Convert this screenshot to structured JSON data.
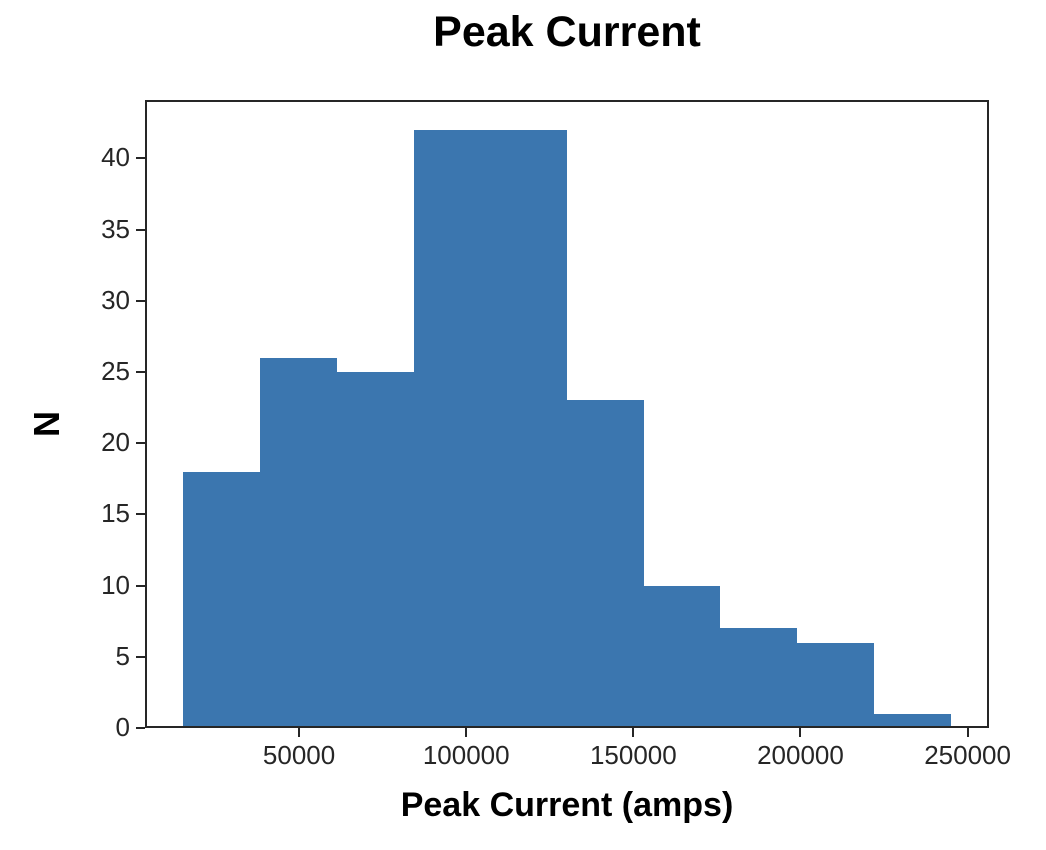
{
  "figure": {
    "background_color": "#ffffff",
    "frame_color": "#262626",
    "text_color": "#1a1a1a"
  },
  "chart_data": {
    "type": "bar",
    "subtype": "histogram",
    "title": "Peak Current",
    "xlabel": "Peak Current (amps)",
    "ylabel": "N",
    "bar_color": "#3b76af",
    "bin_edges": [
      15400,
      38350,
      61300,
      84250,
      107200,
      130150,
      153100,
      176050,
      199000,
      221950,
      244900
    ],
    "counts": [
      18,
      26,
      25,
      42,
      42,
      23,
      10,
      7,
      6,
      1
    ],
    "xlim": [
      3900,
      256400
    ],
    "ylim": [
      0,
      44.1
    ],
    "xticks": {
      "values": [
        50000,
        100000,
        150000,
        200000,
        250000
      ],
      "labels": [
        "50000",
        "100000",
        "150000",
        "200000",
        "250000"
      ]
    },
    "yticks": {
      "values": [
        0,
        5,
        10,
        15,
        20,
        25,
        30,
        35,
        40
      ],
      "labels": [
        "0",
        "5",
        "10",
        "15",
        "20",
        "25",
        "30",
        "35",
        "40"
      ]
    },
    "grid": false,
    "legend": "none"
  }
}
